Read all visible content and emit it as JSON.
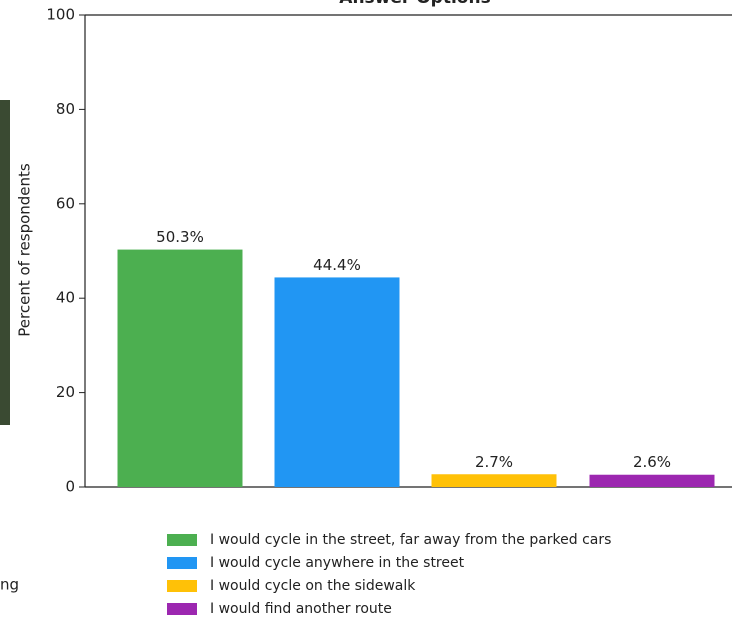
{
  "chart_data": {
    "type": "bar",
    "title": "Answer Options",
    "ylabel": "Percent of respondents",
    "ylim": [
      0,
      100
    ],
    "yticks": [
      0,
      20,
      40,
      60,
      80,
      100
    ],
    "series": [
      {
        "name": "I would cycle in the street, far away from the parked cars",
        "color": "#4caf50",
        "values": [
          50.3
        ],
        "value_labels": [
          "50.3%"
        ]
      },
      {
        "name": "I would cycle anywhere in the street",
        "color": "#2196f3",
        "values": [
          44.4
        ],
        "value_labels": [
          "44.4%"
        ]
      },
      {
        "name": "I would cycle on the sidewalk",
        "color": "#ffc107",
        "values": [
          2.7
        ],
        "value_labels": [
          "2.7%"
        ]
      },
      {
        "name": "I would find another route",
        "color": "#9c27b0",
        "values": [
          2.6
        ],
        "value_labels": [
          "2.6%"
        ]
      }
    ]
  },
  "caption_fragment": "ng"
}
